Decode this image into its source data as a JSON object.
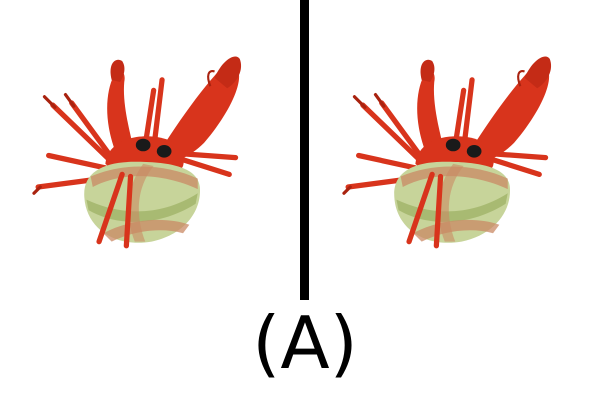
{
  "caption": "(A)",
  "panels": [
    {
      "icon": "hermit-crab-icon"
    },
    {
      "icon": "hermit-crab-icon"
    }
  ],
  "colors": {
    "body": "#d8341c",
    "body_shade": "#a9220f",
    "shell_light": "#c7d49a",
    "shell_mid": "#a8ba72",
    "shell_stripe": "#c98a64",
    "eye": "#1a1a1a",
    "divider": "#000000"
  }
}
